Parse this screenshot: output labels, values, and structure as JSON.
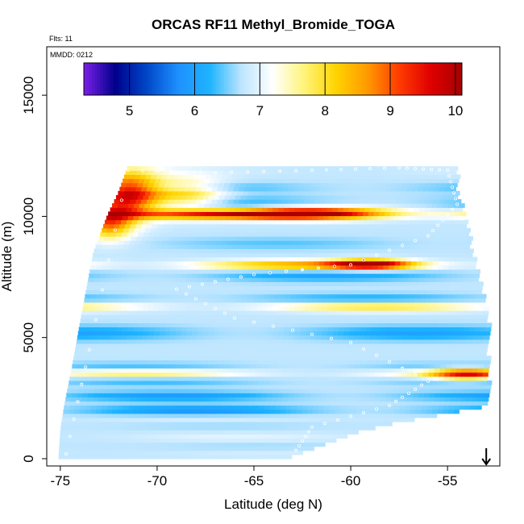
{
  "chart_data": {
    "type": "heatmap",
    "title": "ORCAS RF11 Methyl_Bromide_TOGA",
    "flights_label": "Flts: 11",
    "date_label": "MMDD: 0212",
    "xlabel": "Latitude (deg N)",
    "ylabel": "Altitude (m)",
    "xlim": [
      -75.7,
      -52.3
    ],
    "ylim": [
      -300,
      17000
    ],
    "x_ticks": [
      -75,
      -70,
      -65,
      -60,
      -55
    ],
    "x_tick_labels": [
      "-75",
      "-70",
      "-65",
      "-60",
      "-55"
    ],
    "y_ticks": [
      0,
      5000,
      10000,
      15000
    ],
    "y_tick_labels": [
      "0",
      "5000",
      "10000",
      "15000"
    ],
    "colorbar": {
      "range": [
        4.3,
        10.1
      ],
      "ticks": [
        5,
        6,
        7,
        8,
        9,
        10
      ],
      "tick_labels": [
        "5",
        "6",
        "7",
        "8",
        "9",
        "10"
      ],
      "colors": [
        "#7b1fe8",
        "#00008b",
        "#0047c8",
        "#1e90ff",
        "#1eb4ff",
        "#bde5ff",
        "#ffffff",
        "#fff47a",
        "#ffd400",
        "#ff9a00",
        "#ff3c00",
        "#e00000",
        "#a80000"
      ]
    },
    "base_value": 6.75,
    "bands": [
      {
        "alt": 11900,
        "value": 6.9,
        "width": 250
      },
      {
        "alt": 11200,
        "value": 6.2,
        "width": 220
      },
      {
        "alt": 10700,
        "value": 6.3,
        "width": 200
      },
      {
        "alt": 10400,
        "value": 6.1,
        "width": 200
      },
      {
        "alt": 10100,
        "value": 9.0,
        "width": 200
      },
      {
        "alt": 9900,
        "value": 6.8,
        "width": 260
      },
      {
        "alt": 8900,
        "value": 6.4,
        "width": 250
      },
      {
        "alt": 8000,
        "value": 8.7,
        "width": 200
      },
      {
        "alt": 7600,
        "value": 6.0,
        "width": 260
      },
      {
        "alt": 6600,
        "value": 6.1,
        "width": 220
      },
      {
        "alt": 6300,
        "value": 8.1,
        "width": 200
      },
      {
        "alt": 5200,
        "value": 6.0,
        "width": 300
      },
      {
        "alt": 3700,
        "value": 6.1,
        "width": 250
      },
      {
        "alt": 3550,
        "value": 8.2,
        "width": 180
      },
      {
        "alt": 3200,
        "value": 6.3,
        "width": 200
      },
      {
        "alt": 2600,
        "value": 5.9,
        "width": 200
      },
      {
        "alt": 2000,
        "value": 5.8,
        "width": 220
      },
      {
        "alt": 1700,
        "value": 7.0,
        "width": 200
      },
      {
        "alt": 1400,
        "value": 6.6,
        "width": 200
      },
      {
        "alt": 900,
        "value": 7.0,
        "width": 200
      },
      {
        "alt": 500,
        "value": 6.6,
        "width": 200
      },
      {
        "alt": 250,
        "value": 6.9,
        "width": 200
      }
    ],
    "hotspots": [
      {
        "lat": -71.5,
        "alt": 10900,
        "value": 9.8,
        "lat_width": 1.6,
        "alt_width": 900
      },
      {
        "lat": -68.5,
        "alt": 10900,
        "value": 8.2,
        "lat_width": 2.0,
        "alt_width": 700
      },
      {
        "lat": -72.5,
        "alt": 9800,
        "value": 8.8,
        "lat_width": 1.2,
        "alt_width": 700
      },
      {
        "lat": -62.0,
        "alt": 10150,
        "value": 9.6,
        "lat_width": 4.0,
        "alt_width": 250
      },
      {
        "lat": -59.0,
        "alt": 8050,
        "value": 9.4,
        "lat_width": 2.0,
        "alt_width": 200
      },
      {
        "lat": -54.0,
        "alt": 3500,
        "value": 8.8,
        "lat_width": 1.8,
        "alt_width": 250
      }
    ],
    "domain_edges": [
      {
        "alt": 0,
        "lat_min": -75.1,
        "lat_max": -63.5
      },
      {
        "alt": 1200,
        "lat_min": -75.0,
        "lat_max": -59.5
      },
      {
        "alt": 2200,
        "lat_min": -74.8,
        "lat_max": -53.0
      },
      {
        "alt": 3800,
        "lat_min": -74.4,
        "lat_max": -53.0
      },
      {
        "alt": 6000,
        "lat_min": -73.9,
        "lat_max": -53.0
      },
      {
        "alt": 8500,
        "lat_min": -73.3,
        "lat_max": -53.8
      },
      {
        "alt": 10000,
        "lat_min": -72.6,
        "lat_max": -54.2
      },
      {
        "alt": 11000,
        "lat_min": -72.0,
        "lat_max": -54.6
      },
      {
        "alt": 12100,
        "lat_min": -71.5,
        "lat_max": -54.6
      }
    ],
    "flight_track": [
      {
        "lat": -74.7,
        "alt": 200
      },
      {
        "lat": -73.5,
        "alt": 4500
      },
      {
        "lat": -71.5,
        "alt": 11900
      },
      {
        "lat": -67.0,
        "alt": 11800
      },
      {
        "lat": -62.0,
        "alt": 11900
      },
      {
        "lat": -57.5,
        "alt": 12000
      },
      {
        "lat": -55.0,
        "alt": 11900
      },
      {
        "lat": -54.5,
        "alt": 10500
      },
      {
        "lat": -56.0,
        "alt": 9200
      },
      {
        "lat": -60.0,
        "alt": 8000
      },
      {
        "lat": -65.0,
        "alt": 7600
      },
      {
        "lat": -69.0,
        "alt": 7000
      },
      {
        "lat": -66.0,
        "alt": 5800
      },
      {
        "lat": -60.0,
        "alt": 4800
      },
      {
        "lat": -56.0,
        "alt": 3200
      },
      {
        "lat": -58.0,
        "alt": 2200
      },
      {
        "lat": -62.0,
        "alt": 1300
      },
      {
        "lat": -63.0,
        "alt": 150
      }
    ],
    "arrow_latitude": -53.0
  }
}
